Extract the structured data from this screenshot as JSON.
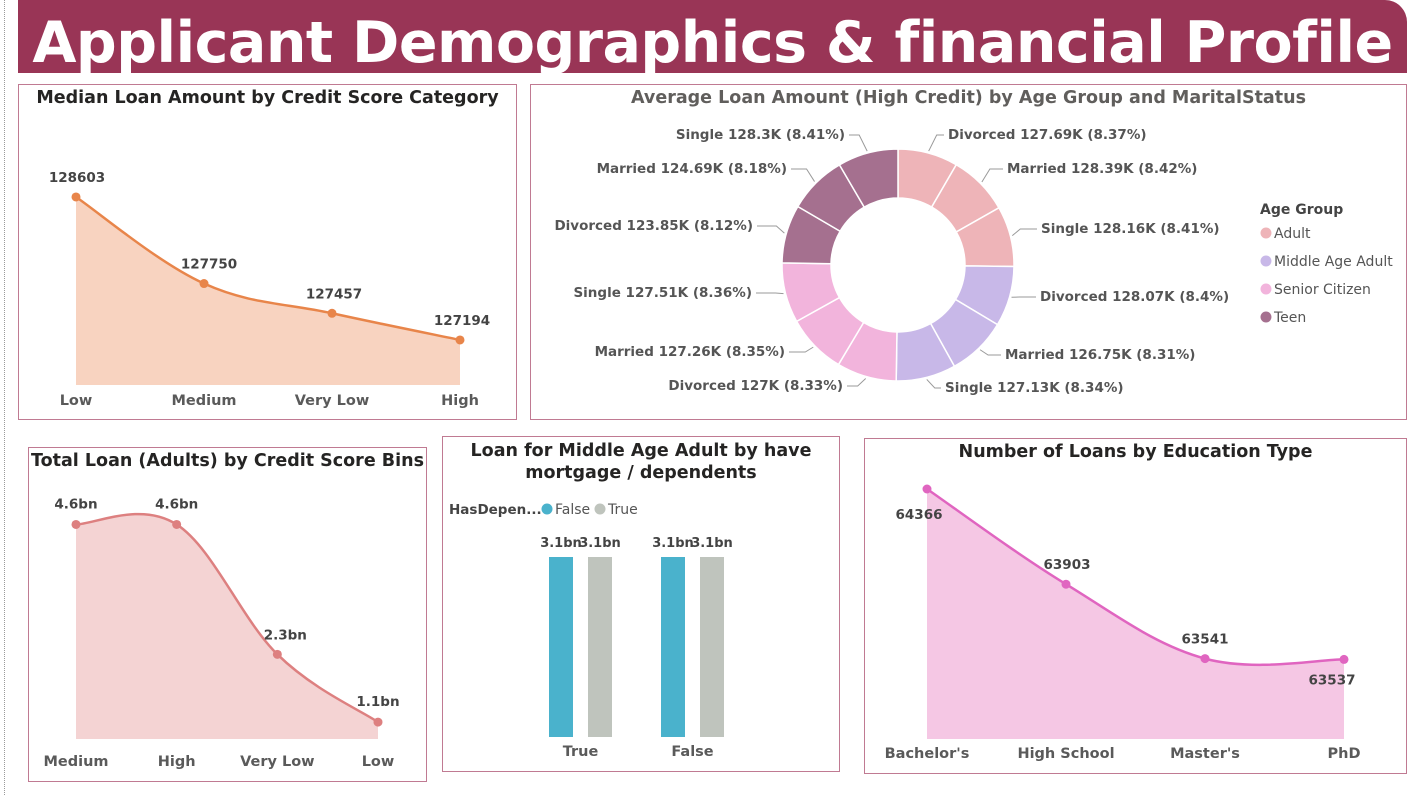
{
  "banner": {
    "title": "Applicant Demographics & financial Profile"
  },
  "chart_data": [
    {
      "id": "median-by-credit",
      "type": "area",
      "title": "Median Loan Amount by Credit Score Category",
      "categories": [
        "Low",
        "Medium",
        "Very Low",
        "High"
      ],
      "series": [
        {
          "values": [
            128603,
            127750,
            127457,
            127194
          ]
        }
      ],
      "data_labels": [
        "128603",
        "127750",
        "127457",
        "127194"
      ],
      "ylim": [
        126750,
        128800
      ],
      "color": "#e8854a"
    },
    {
      "id": "avg-by-age-marital",
      "type": "pie",
      "title": "Average Loan Amount (High Credit) by Age Group and MaritalStatus",
      "legend": {
        "title": "Age Group",
        "position": "right",
        "items": [
          {
            "name": "Adult",
            "color": "#eeb4b8"
          },
          {
            "name": "Middle Age Adult",
            "color": "#c8b8e8"
          },
          {
            "name": "Senior Citizen",
            "color": "#f2b4dc"
          },
          {
            "name": "Teen",
            "color": "#a5708f"
          }
        ]
      },
      "slices": [
        {
          "group": "Adult",
          "label": "Divorced 127.69K (8.37%)",
          "value": 127.69,
          "pct": 8.37
        },
        {
          "group": "Adult",
          "label": "Married 128.39K (8.42%)",
          "value": 128.39,
          "pct": 8.42
        },
        {
          "group": "Adult",
          "label": "Single 128.16K (8.41%)",
          "value": 128.16,
          "pct": 8.41
        },
        {
          "group": "Middle Age Adult",
          "label": "Divorced 128.07K (8.4%)",
          "value": 128.07,
          "pct": 8.4
        },
        {
          "group": "Middle Age Adult",
          "label": "Married 126.75K (8.31%)",
          "value": 126.75,
          "pct": 8.31
        },
        {
          "group": "Middle Age Adult",
          "label": "Single 127.13K (8.34%)",
          "value": 127.13,
          "pct": 8.34
        },
        {
          "group": "Senior Citizen",
          "label": "Divorced 127K (8.33%)",
          "value": 127.0,
          "pct": 8.33
        },
        {
          "group": "Senior Citizen",
          "label": "Married 127.26K (8.35%)",
          "value": 127.26,
          "pct": 8.35
        },
        {
          "group": "Senior Citizen",
          "label": "Single 127.51K (8.36%)",
          "value": 127.51,
          "pct": 8.36
        },
        {
          "group": "Teen",
          "label": "Divorced 123.85K (8.12%)",
          "value": 123.85,
          "pct": 8.12
        },
        {
          "group": "Teen",
          "label": "Married 124.69K (8.18%)",
          "value": 124.69,
          "pct": 8.18
        },
        {
          "group": "Teen",
          "label": "Single 128.3K (8.41%)",
          "value": 128.3,
          "pct": 8.41
        }
      ]
    },
    {
      "id": "total-adults-bins",
      "type": "area",
      "title": "Total Loan (Adults) by Credit Score Bins",
      "categories": [
        "Medium",
        "High",
        "Very Low",
        "Low"
      ],
      "series": [
        {
          "values": [
            4.6,
            4.6,
            2.3,
            1.1
          ]
        }
      ],
      "data_labels": [
        "4.6bn",
        "4.6bn",
        "2.3bn",
        "1.1bn"
      ],
      "ylim": [
        0.8,
        4.75
      ],
      "color": "#dd8080"
    },
    {
      "id": "middle-age-mortgage",
      "type": "bar",
      "title": "Loan for Middle Age Adult by have mortgage / dependents",
      "legend": {
        "title": "HasDepen...",
        "position": "top-left"
      },
      "categories": [
        "True",
        "False"
      ],
      "series": [
        {
          "name": "False",
          "values": [
            3.1,
            3.1
          ],
          "labels": [
            "3.1bn",
            "3.1bn"
          ],
          "color": "#4ab2cc"
        },
        {
          "name": "True",
          "values": [
            3.1,
            3.1
          ],
          "labels": [
            "3.1bn",
            "3.1bn"
          ],
          "color": "#bfc4bd"
        }
      ],
      "ylim": [
        0,
        3.1
      ]
    },
    {
      "id": "loans-by-education",
      "type": "area",
      "title": "Number of Loans by Education Type",
      "categories": [
        "Bachelor's",
        "High School",
        "Master's",
        "PhD"
      ],
      "series": [
        {
          "values": [
            64366,
            63903,
            63541,
            63537
          ]
        }
      ],
      "data_labels": [
        "64366",
        "63903",
        "63541",
        "63537"
      ],
      "ylim": [
        63150,
        64366
      ],
      "color": "#e065c0"
    }
  ]
}
